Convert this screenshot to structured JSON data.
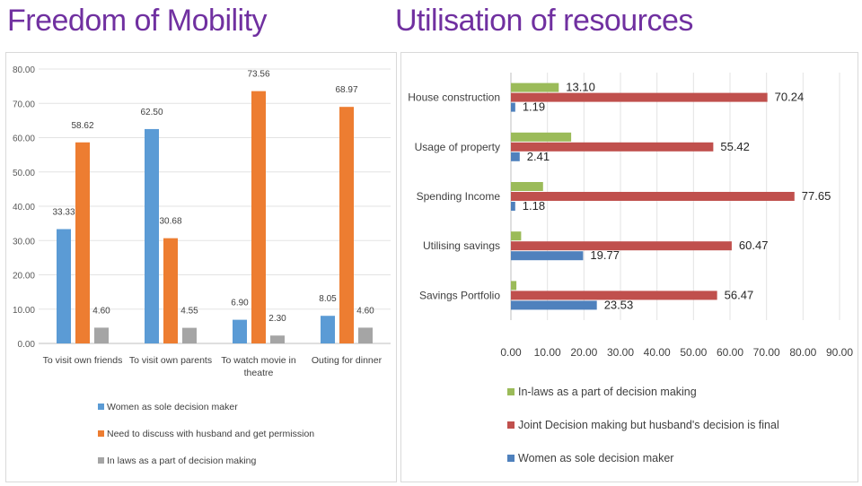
{
  "titles": {
    "left": "Freedom of Mobility",
    "right": "Utilisation of resources"
  },
  "colors": {
    "blue": "#5b9bd5",
    "orange": "#ed7d31",
    "gray": "#a5a5a5",
    "red": "#c0504d",
    "green": "#9bbb59",
    "title": "#7030a0"
  },
  "chart_data": [
    {
      "type": "bar",
      "title": "Freedom of Mobility",
      "categories": [
        "To visit own friends",
        "To visit own parents",
        "To watch movie in theatre",
        "Outing for dinner"
      ],
      "category_lines": [
        [
          "To visit own friends"
        ],
        [
          "To visit own parents"
        ],
        [
          "To watch movie in",
          "theatre"
        ],
        [
          "Outing for dinner"
        ]
      ],
      "ylim": [
        0,
        80
      ],
      "yticks": [
        "0.00",
        "10.00",
        "20.00",
        "30.00",
        "40.00",
        "50.00",
        "60.00",
        "70.00",
        "80.00"
      ],
      "gridlines": true,
      "legend_position": "bottom",
      "series": [
        {
          "name": "Women as  sole decision maker",
          "color": "#5b9bd5",
          "values": [
            33.33,
            62.5,
            6.9,
            8.05
          ],
          "labels": [
            "33.33",
            "62.50",
            "6.90",
            "8.05"
          ]
        },
        {
          "name": "Need to discuss with husband and get permission",
          "color": "#ed7d31",
          "values": [
            58.62,
            30.68,
            73.56,
            68.97
          ],
          "labels": [
            "58.62",
            "30.68",
            "73.56",
            "68.97"
          ]
        },
        {
          "name": "In laws as a part of decision making",
          "color": "#a5a5a5",
          "values": [
            4.6,
            4.55,
            2.3,
            4.6
          ],
          "labels": [
            "4.60",
            "4.55",
            "2.30",
            "4.60"
          ]
        }
      ]
    },
    {
      "type": "bar",
      "orientation": "horizontal",
      "title": "Utilisation of resources",
      "categories": [
        "House construction",
        "Usage of property",
        "Spending Income",
        "Utilising savings",
        "Savings Portfolio"
      ],
      "xlim": [
        0,
        90
      ],
      "xticks": [
        "0.00",
        "10.00",
        "20.00",
        "30.00",
        "40.00",
        "50.00",
        "60.00",
        "70.00",
        "80.00",
        "90.00"
      ],
      "gridlines": true,
      "legend_position": "bottom",
      "series": [
        {
          "name": "In-laws as a part of decision making",
          "color": "#9bbb59",
          "values": [
            13.1,
            16.5,
            8.8,
            2.8,
            1.5
          ],
          "labels": [
            "13.10",
            "",
            "",
            "",
            ""
          ]
        },
        {
          "name": "Joint Decision making but husband's decision is final",
          "color": "#c0504d",
          "values": [
            70.24,
            55.42,
            77.65,
            60.47,
            56.47
          ],
          "labels": [
            "70.24",
            "55.42",
            "77.65",
            "60.47",
            "56.47"
          ]
        },
        {
          "name": "Women as  sole decision maker",
          "color": "#4f81bd",
          "values": [
            1.19,
            2.41,
            1.18,
            19.77,
            23.53
          ],
          "labels": [
            "1.19",
            "2.41",
            "1.18",
            "19.77",
            "23.53"
          ]
        }
      ],
      "legend_order": [
        0,
        1,
        2
      ]
    }
  ]
}
